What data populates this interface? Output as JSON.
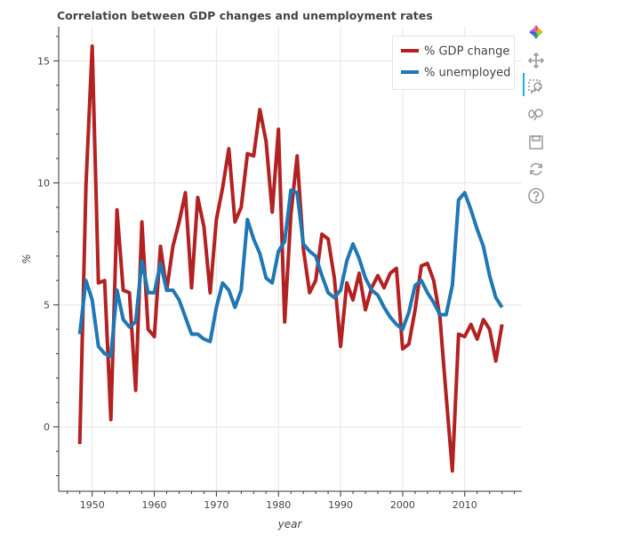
{
  "chart_data": {
    "type": "line",
    "title": "Correlation between GDP changes and unemployment rates",
    "xlabel": "year",
    "ylabel": "%",
    "xlim": [
      1944.6,
      2019.2
    ],
    "ylim": [
      -2.6,
      16.4
    ],
    "x_ticks": [
      1950,
      1960,
      1970,
      1980,
      1990,
      2000,
      2010
    ],
    "x_tick_labels": [
      "1950",
      "1960",
      "1970",
      "1980",
      "1990",
      "2000",
      "2010"
    ],
    "y_ticks": [
      0,
      5,
      10,
      15
    ],
    "y_tick_labels": [
      "0",
      "5",
      "10",
      "15"
    ],
    "grid": true,
    "legend_position": "top-right",
    "series": [
      {
        "name": "% GDP change",
        "color": "#b22222",
        "x": [
          1948,
          1949,
          1950,
          1951,
          1952,
          1953,
          1954,
          1955,
          1956,
          1957,
          1958,
          1959,
          1960,
          1961,
          1962,
          1963,
          1964,
          1965,
          1966,
          1967,
          1968,
          1969,
          1970,
          1971,
          1972,
          1973,
          1974,
          1975,
          1976,
          1977,
          1978,
          1979,
          1980,
          1981,
          1982,
          1983,
          1984,
          1985,
          1986,
          1987,
          1988,
          1989,
          1990,
          1991,
          1992,
          1993,
          1994,
          1995,
          1996,
          1997,
          1998,
          1999,
          2000,
          2001,
          2002,
          2003,
          2004,
          2005,
          2006,
          2007,
          2008,
          2009,
          2010,
          2011,
          2012,
          2013,
          2014,
          2015,
          2016
        ],
        "values": [
          -0.7,
          9.9,
          15.6,
          5.9,
          6.0,
          0.3,
          8.9,
          5.6,
          5.5,
          1.5,
          8.4,
          4.0,
          3.7,
          7.4,
          5.6,
          7.4,
          8.4,
          9.6,
          5.7,
          9.4,
          8.2,
          5.5,
          8.5,
          9.8,
          11.4,
          8.4,
          9.0,
          11.2,
          11.1,
          13.0,
          11.7,
          8.8,
          12.2,
          4.3,
          8.7,
          11.1,
          7.3,
          5.5,
          6.0,
          7.9,
          7.7,
          6.1,
          3.3,
          5.9,
          5.2,
          6.3,
          4.8,
          5.7,
          6.2,
          5.7,
          6.3,
          6.5,
          3.2,
          3.4,
          4.8,
          6.6,
          6.7,
          6.0,
          4.5,
          1.3,
          -1.8,
          3.8,
          3.7,
          4.2,
          3.6,
          4.4,
          4.0,
          2.7,
          4.2
        ]
      },
      {
        "name": "% unemployed",
        "color": "#1f77b4",
        "x": [
          1948,
          1949,
          1950,
          1951,
          1952,
          1953,
          1954,
          1955,
          1956,
          1957,
          1958,
          1959,
          1960,
          1961,
          1962,
          1963,
          1964,
          1965,
          1966,
          1967,
          1968,
          1969,
          1970,
          1971,
          1972,
          1973,
          1974,
          1975,
          1976,
          1977,
          1978,
          1979,
          1980,
          1981,
          1982,
          1983,
          1984,
          1985,
          1986,
          1987,
          1988,
          1989,
          1990,
          1991,
          1992,
          1993,
          1994,
          1995,
          1996,
          1997,
          1998,
          1999,
          2000,
          2001,
          2002,
          2003,
          2004,
          2005,
          2006,
          2007,
          2008,
          2009,
          2010,
          2011,
          2012,
          2013,
          2014,
          2015,
          2016
        ],
        "values": [
          3.8,
          6.0,
          5.2,
          3.3,
          3.0,
          2.9,
          5.6,
          4.4,
          4.1,
          4.3,
          6.8,
          5.5,
          5.5,
          6.7,
          5.6,
          5.6,
          5.2,
          4.5,
          3.8,
          3.8,
          3.6,
          3.5,
          4.9,
          5.9,
          5.6,
          4.9,
          5.6,
          8.5,
          7.7,
          7.1,
          6.1,
          5.9,
          7.2,
          7.6,
          9.7,
          9.6,
          7.5,
          7.2,
          7.0,
          6.2,
          5.5,
          5.3,
          5.6,
          6.8,
          7.5,
          6.9,
          6.1,
          5.6,
          5.4,
          4.9,
          4.5,
          4.2,
          4.0,
          4.7,
          5.8,
          6.0,
          5.5,
          5.1,
          4.6,
          4.6,
          5.8,
          9.3,
          9.6,
          8.9,
          8.1,
          7.4,
          6.2,
          5.3,
          4.9
        ]
      }
    ]
  },
  "toolbar": {
    "tools": [
      {
        "name": "bokeh-logo-icon",
        "interactable": true
      },
      {
        "name": "pan-icon",
        "interactable": true
      },
      {
        "name": "box-zoom-icon",
        "interactable": true
      },
      {
        "name": "wheel-zoom-icon",
        "interactable": true
      },
      {
        "name": "save-icon",
        "interactable": true
      },
      {
        "name": "reset-icon",
        "interactable": true
      },
      {
        "name": "help-icon",
        "interactable": true
      }
    ]
  }
}
